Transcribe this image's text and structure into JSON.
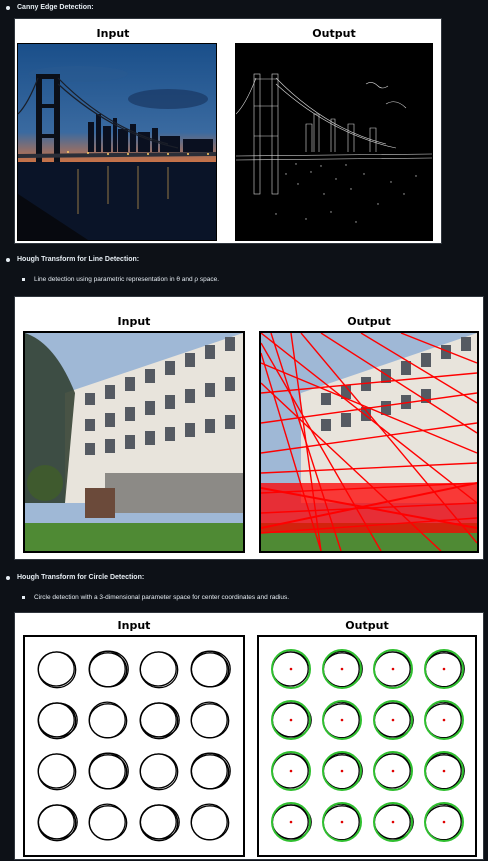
{
  "sections": [
    {
      "title": "Canny Edge Detection:",
      "subtitle": "",
      "input_label": "Input",
      "output_label": "Output"
    },
    {
      "title": "Hough Transform for Line Detection:",
      "subtitle": "Line detection using parametric representation in θ and ρ space.",
      "input_label": "Input",
      "output_label": "Output"
    },
    {
      "title": "Hough Transform for Circle Detection:",
      "subtitle": "Circle detection with a 3-dimensional parameter space for center coordinates and radius.",
      "input_label": "Input",
      "output_label": "Output"
    }
  ],
  "colors": {
    "background": "#0d1117",
    "text": "#e6edf3",
    "hough_lines": "#ff0000",
    "detected_circles": "#2fbf2f",
    "circle_centers": "#e00000"
  }
}
